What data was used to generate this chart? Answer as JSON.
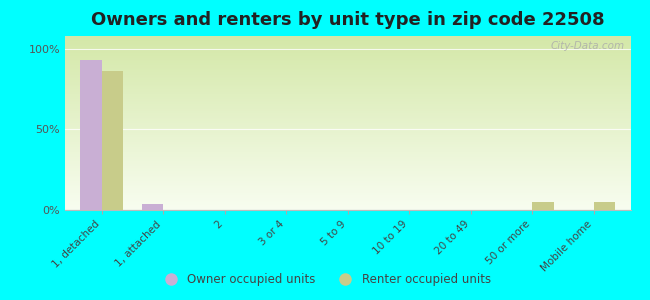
{
  "title": "Owners and renters by unit type in zip code 22508",
  "categories": [
    "1, detached",
    "1, attached",
    "2",
    "3 or 4",
    "5 to 9",
    "10 to 19",
    "20 to 49",
    "50 or more",
    "Mobile home"
  ],
  "owner_values": [
    93,
    4,
    0,
    0,
    0,
    0,
    0,
    0,
    0
  ],
  "renter_values": [
    86,
    0,
    0,
    0,
    0,
    0,
    0,
    5,
    5
  ],
  "owner_color": "#c9afd4",
  "renter_color": "#c8cc8a",
  "background_color": "#00ffff",
  "gradient_top": "#d4e8a8",
  "gradient_bottom": "#f8fdf0",
  "yticks": [
    0,
    50,
    100
  ],
  "ytick_labels": [
    "0%",
    "50%",
    "100%"
  ],
  "ylim": [
    0,
    108
  ],
  "bar_width": 0.35,
  "legend_owner": "Owner occupied units",
  "legend_renter": "Renter occupied units",
  "watermark": "City-Data.com",
  "title_fontsize": 13
}
